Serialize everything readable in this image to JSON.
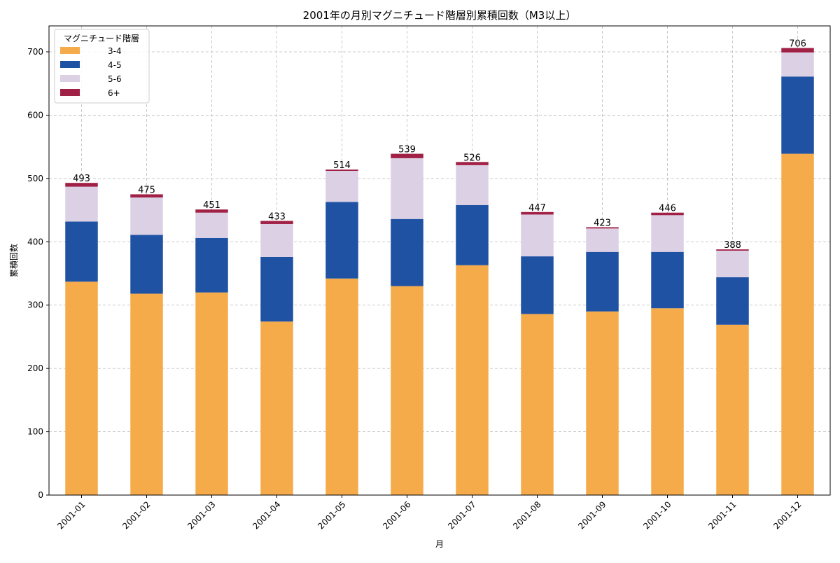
{
  "chart_data": {
    "type": "bar",
    "stacked": true,
    "title": "2001年の月別マグニチュード階層別累積回数（M3以上）",
    "xlabel": "月",
    "ylabel": "累積回数",
    "ylim": [
      0,
      740
    ],
    "yticks": [
      0,
      100,
      200,
      300,
      400,
      500,
      600,
      700
    ],
    "grid": true,
    "legend": {
      "title": "マグニチュード階層",
      "placement": "top-left"
    },
    "categories": [
      "2001-01",
      "2001-02",
      "2001-03",
      "2001-04",
      "2001-05",
      "2001-06",
      "2001-07",
      "2001-08",
      "2001-09",
      "2001-10",
      "2001-11",
      "2001-12"
    ],
    "series": [
      {
        "name": "3-4",
        "color": "#F5AB4A",
        "values": [
          337,
          318,
          320,
          274,
          342,
          330,
          363,
          286,
          290,
          295,
          269,
          539
        ]
      },
      {
        "name": "4-5",
        "color": "#1F52A3",
        "values": [
          95,
          93,
          86,
          102,
          121,
          106,
          95,
          91,
          94,
          89,
          75,
          122
        ]
      },
      {
        "name": "5-6",
        "color": "#DCD0E5",
        "values": [
          55,
          59,
          40,
          52,
          49,
          96,
          63,
          66,
          37,
          58,
          42,
          38
        ]
      },
      {
        "name": "6+",
        "color": "#A12045",
        "values": [
          6,
          5,
          5,
          5,
          2,
          7,
          5,
          4,
          2,
          4,
          2,
          7
        ]
      }
    ],
    "totals": [
      493,
      475,
      451,
      433,
      514,
      539,
      526,
      447,
      423,
      446,
      388,
      706
    ]
  }
}
